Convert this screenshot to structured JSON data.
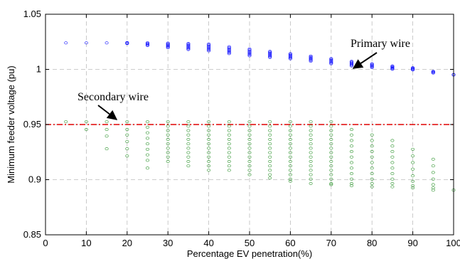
{
  "chart_data": {
    "type": "scatter",
    "xlabel": "Percentage EV penetration(%)",
    "ylabel": "Minimum feeder voltage (pu)",
    "xlim": [
      0,
      100
    ],
    "ylim": [
      0.85,
      1.05
    ],
    "xticks": [
      0,
      10,
      20,
      30,
      40,
      50,
      60,
      70,
      80,
      90,
      100
    ],
    "yticks": [
      0.85,
      0.9,
      0.95,
      1,
      1.05
    ],
    "xtick_labels": [
      "0",
      "10",
      "20",
      "30",
      "40",
      "50",
      "60",
      "70",
      "80",
      "90",
      "100"
    ],
    "ytick_labels": [
      "0.85",
      "0.9",
      "0.95",
      "1",
      "1.05"
    ],
    "grid": true,
    "threshold": {
      "y": 0.95,
      "color": "#e00000",
      "style": "dash-dot"
    },
    "series": [
      {
        "color": "#0000ff",
        "points": [
          [
            5,
            1.024
          ],
          [
            10,
            1.024
          ],
          [
            15,
            1.024
          ],
          [
            20,
            1.0243
          ],
          [
            20,
            1.0238
          ],
          [
            20,
            1.0234
          ],
          [
            25,
            1.0241
          ],
          [
            25,
            1.0235
          ],
          [
            25,
            1.0228
          ],
          [
            25,
            1.0221
          ],
          [
            25,
            1.0216
          ],
          [
            30,
            1.0238
          ],
          [
            30,
            1.0231
          ],
          [
            30,
            1.0224
          ],
          [
            30,
            1.0217
          ],
          [
            30,
            1.021
          ],
          [
            30,
            1.0203
          ],
          [
            30,
            1.0196
          ],
          [
            35,
            1.0235
          ],
          [
            35,
            1.0227
          ],
          [
            35,
            1.0219
          ],
          [
            35,
            1.0211
          ],
          [
            35,
            1.0203
          ],
          [
            35,
            1.0195
          ],
          [
            35,
            1.0187
          ],
          [
            35,
            1.018
          ],
          [
            40,
            1.023
          ],
          [
            40,
            1.0221
          ],
          [
            40,
            1.0212
          ],
          [
            40,
            1.0203
          ],
          [
            40,
            1.0194
          ],
          [
            40,
            1.0185
          ],
          [
            40,
            1.0176
          ],
          [
            40,
            1.0168
          ],
          [
            45,
            1.0205
          ],
          [
            45,
            1.0196
          ],
          [
            45,
            1.0187
          ],
          [
            45,
            1.0178
          ],
          [
            45,
            1.0169
          ],
          [
            45,
            1.016
          ],
          [
            45,
            1.0151
          ],
          [
            45,
            1.0143
          ],
          [
            50,
            1.0185
          ],
          [
            50,
            1.0176
          ],
          [
            50,
            1.0167
          ],
          [
            50,
            1.0158
          ],
          [
            50,
            1.0149
          ],
          [
            50,
            1.014
          ],
          [
            50,
            1.0131
          ],
          [
            50,
            1.0123
          ],
          [
            55,
            1.0163
          ],
          [
            55,
            1.0155
          ],
          [
            55,
            1.0147
          ],
          [
            55,
            1.0139
          ],
          [
            55,
            1.0131
          ],
          [
            55,
            1.0123
          ],
          [
            55,
            1.0115
          ],
          [
            55,
            1.0108
          ],
          [
            60,
            1.0143
          ],
          [
            60,
            1.0135
          ],
          [
            60,
            1.0127
          ],
          [
            60,
            1.0119
          ],
          [
            60,
            1.0111
          ],
          [
            60,
            1.0103
          ],
          [
            60,
            1.0096
          ],
          [
            65,
            1.0121
          ],
          [
            65,
            1.0113
          ],
          [
            65,
            1.0105
          ],
          [
            65,
            1.0097
          ],
          [
            65,
            1.0089
          ],
          [
            65,
            1.0081
          ],
          [
            65,
            1.0074
          ],
          [
            70,
            1.0098
          ],
          [
            70,
            1.009
          ],
          [
            70,
            1.0082
          ],
          [
            70,
            1.0074
          ],
          [
            70,
            1.0066
          ],
          [
            70,
            1.0058
          ],
          [
            70,
            1.0051
          ],
          [
            75,
            1.0073
          ],
          [
            75,
            1.0066
          ],
          [
            75,
            1.0059
          ],
          [
            75,
            1.0052
          ],
          [
            75,
            1.0045
          ],
          [
            75,
            1.0038
          ],
          [
            75,
            1.0031
          ],
          [
            80,
            1.0051
          ],
          [
            80,
            1.0044
          ],
          [
            80,
            1.0037
          ],
          [
            80,
            1.003
          ],
          [
            80,
            1.0023
          ],
          [
            80,
            1.0016
          ],
          [
            85,
            1.0031
          ],
          [
            85,
            1.0025
          ],
          [
            85,
            1.0019
          ],
          [
            85,
            1.0013
          ],
          [
            85,
            1.0007
          ],
          [
            85,
            1.0001
          ],
          [
            90,
            1.0015
          ],
          [
            90,
            1.001
          ],
          [
            90,
            1.0005
          ],
          [
            90,
            1.0
          ],
          [
            90,
            0.9995
          ],
          [
            95,
            0.9982
          ],
          [
            95,
            0.9977
          ],
          [
            95,
            0.9972
          ],
          [
            95,
            0.9967
          ],
          [
            100,
            0.9953
          ],
          [
            100,
            0.9949
          ]
        ]
      },
      {
        "color": "#1a8a1a",
        "points": [
          [
            5,
            0.9525
          ],
          [
            10,
            0.9525
          ],
          [
            10,
            0.9455
          ],
          [
            15,
            0.9525
          ],
          [
            15,
            0.9455
          ],
          [
            15,
            0.9395
          ],
          [
            15,
            0.928
          ],
          [
            20,
            0.9525
          ],
          [
            20,
            0.9455
          ],
          [
            20,
            0.9405
          ],
          [
            20,
            0.9345
          ],
          [
            20,
            0.928
          ],
          [
            20,
            0.9215
          ],
          [
            25,
            0.9525
          ],
          [
            25,
            0.9475
          ],
          [
            25,
            0.9425
          ],
          [
            25,
            0.9375
          ],
          [
            25,
            0.9325
          ],
          [
            25,
            0.9275
          ],
          [
            25,
            0.9225
          ],
          [
            25,
            0.9175
          ],
          [
            25,
            0.9105
          ],
          [
            30,
            0.9525
          ],
          [
            30,
            0.9485
          ],
          [
            30,
            0.9445
          ],
          [
            30,
            0.9405
          ],
          [
            30,
            0.9365
          ],
          [
            30,
            0.9325
          ],
          [
            30,
            0.9285
          ],
          [
            30,
            0.9245
          ],
          [
            30,
            0.9205
          ],
          [
            30,
            0.9165
          ],
          [
            35,
            0.9525
          ],
          [
            35,
            0.9485
          ],
          [
            35,
            0.9445
          ],
          [
            35,
            0.9405
          ],
          [
            35,
            0.9365
          ],
          [
            35,
            0.9325
          ],
          [
            35,
            0.9285
          ],
          [
            35,
            0.9245
          ],
          [
            35,
            0.9205
          ],
          [
            35,
            0.9165
          ],
          [
            35,
            0.9125
          ],
          [
            40,
            0.9525
          ],
          [
            40,
            0.9485
          ],
          [
            40,
            0.9445
          ],
          [
            40,
            0.9405
          ],
          [
            40,
            0.9365
          ],
          [
            40,
            0.9325
          ],
          [
            40,
            0.9285
          ],
          [
            40,
            0.9245
          ],
          [
            40,
            0.9205
          ],
          [
            40,
            0.9165
          ],
          [
            40,
            0.9125
          ],
          [
            40,
            0.9085
          ],
          [
            45,
            0.9525
          ],
          [
            45,
            0.9485
          ],
          [
            45,
            0.9445
          ],
          [
            45,
            0.9405
          ],
          [
            45,
            0.9365
          ],
          [
            45,
            0.9325
          ],
          [
            45,
            0.9285
          ],
          [
            45,
            0.9245
          ],
          [
            45,
            0.9205
          ],
          [
            45,
            0.9165
          ],
          [
            45,
            0.9125
          ],
          [
            45,
            0.9085
          ],
          [
            50,
            0.9525
          ],
          [
            50,
            0.9485
          ],
          [
            50,
            0.9445
          ],
          [
            50,
            0.9405
          ],
          [
            50,
            0.9365
          ],
          [
            50,
            0.9325
          ],
          [
            50,
            0.9285
          ],
          [
            50,
            0.9245
          ],
          [
            50,
            0.9205
          ],
          [
            50,
            0.9165
          ],
          [
            50,
            0.9125
          ],
          [
            50,
            0.9085
          ],
          [
            50,
            0.9045
          ],
          [
            55,
            0.9525
          ],
          [
            55,
            0.9485
          ],
          [
            55,
            0.9445
          ],
          [
            55,
            0.9405
          ],
          [
            55,
            0.9365
          ],
          [
            55,
            0.9325
          ],
          [
            55,
            0.9285
          ],
          [
            55,
            0.9245
          ],
          [
            55,
            0.9205
          ],
          [
            55,
            0.9165
          ],
          [
            55,
            0.9125
          ],
          [
            55,
            0.9085
          ],
          [
            55,
            0.9045
          ],
          [
            55,
            0.9015
          ],
          [
            60,
            0.9525
          ],
          [
            60,
            0.9485
          ],
          [
            60,
            0.9445
          ],
          [
            60,
            0.9405
          ],
          [
            60,
            0.9365
          ],
          [
            60,
            0.9325
          ],
          [
            60,
            0.9285
          ],
          [
            60,
            0.9245
          ],
          [
            60,
            0.9205
          ],
          [
            60,
            0.9165
          ],
          [
            60,
            0.9125
          ],
          [
            60,
            0.9085
          ],
          [
            60,
            0.9045
          ],
          [
            60,
            0.9005
          ],
          [
            60,
            0.8985
          ],
          [
            65,
            0.9525
          ],
          [
            65,
            0.9485
          ],
          [
            65,
            0.9445
          ],
          [
            65,
            0.9405
          ],
          [
            65,
            0.9365
          ],
          [
            65,
            0.9325
          ],
          [
            65,
            0.9285
          ],
          [
            65,
            0.9245
          ],
          [
            65,
            0.9205
          ],
          [
            65,
            0.9165
          ],
          [
            65,
            0.9125
          ],
          [
            65,
            0.9085
          ],
          [
            65,
            0.9045
          ],
          [
            65,
            0.9005
          ],
          [
            65,
            0.8965
          ],
          [
            70,
            0.9525
          ],
          [
            70,
            0.9485
          ],
          [
            70,
            0.9445
          ],
          [
            70,
            0.9405
          ],
          [
            70,
            0.9365
          ],
          [
            70,
            0.9325
          ],
          [
            70,
            0.9285
          ],
          [
            70,
            0.9245
          ],
          [
            70,
            0.9205
          ],
          [
            70,
            0.9165
          ],
          [
            70,
            0.9125
          ],
          [
            70,
            0.9085
          ],
          [
            70,
            0.9045
          ],
          [
            70,
            0.9005
          ],
          [
            70,
            0.8965
          ],
          [
            70,
            0.8955
          ],
          [
            75,
            0.9455
          ],
          [
            75,
            0.9405
          ],
          [
            75,
            0.9355
          ],
          [
            75,
            0.9305
          ],
          [
            75,
            0.9255
          ],
          [
            75,
            0.9205
          ],
          [
            75,
            0.9155
          ],
          [
            75,
            0.9105
          ],
          [
            75,
            0.9055
          ],
          [
            75,
            0.9005
          ],
          [
            75,
            0.8965
          ],
          [
            75,
            0.8945
          ],
          [
            80,
            0.9405
          ],
          [
            80,
            0.9355
          ],
          [
            80,
            0.9305
          ],
          [
            80,
            0.9255
          ],
          [
            80,
            0.9205
          ],
          [
            80,
            0.9155
          ],
          [
            80,
            0.9105
          ],
          [
            80,
            0.9055
          ],
          [
            80,
            0.9005
          ],
          [
            80,
            0.8965
          ],
          [
            80,
            0.8935
          ],
          [
            85,
            0.9355
          ],
          [
            85,
            0.9305
          ],
          [
            85,
            0.9255
          ],
          [
            85,
            0.9205
          ],
          [
            85,
            0.9155
          ],
          [
            85,
            0.9105
          ],
          [
            85,
            0.9055
          ],
          [
            85,
            0.9005
          ],
          [
            85,
            0.8965
          ],
          [
            85,
            0.8935
          ],
          [
            90,
            0.9275
          ],
          [
            90,
            0.9215
          ],
          [
            90,
            0.9155
          ],
          [
            90,
            0.9095
          ],
          [
            90,
            0.9035
          ],
          [
            90,
            0.8985
          ],
          [
            90,
            0.8945
          ],
          [
            90,
            0.8925
          ],
          [
            95,
            0.9185
          ],
          [
            95,
            0.9125
          ],
          [
            95,
            0.9065
          ],
          [
            95,
            0.9005
          ],
          [
            95,
            0.8955
          ],
          [
            95,
            0.8925
          ],
          [
            95,
            0.8905
          ],
          [
            100,
            0.8905
          ]
        ]
      }
    ],
    "annotations": [
      {
        "text": "Primary wire",
        "arrow_to": [
          75,
          1.007
        ]
      },
      {
        "text": "Secondary wire",
        "arrow_to": [
          20,
          0.9525
        ]
      }
    ]
  }
}
